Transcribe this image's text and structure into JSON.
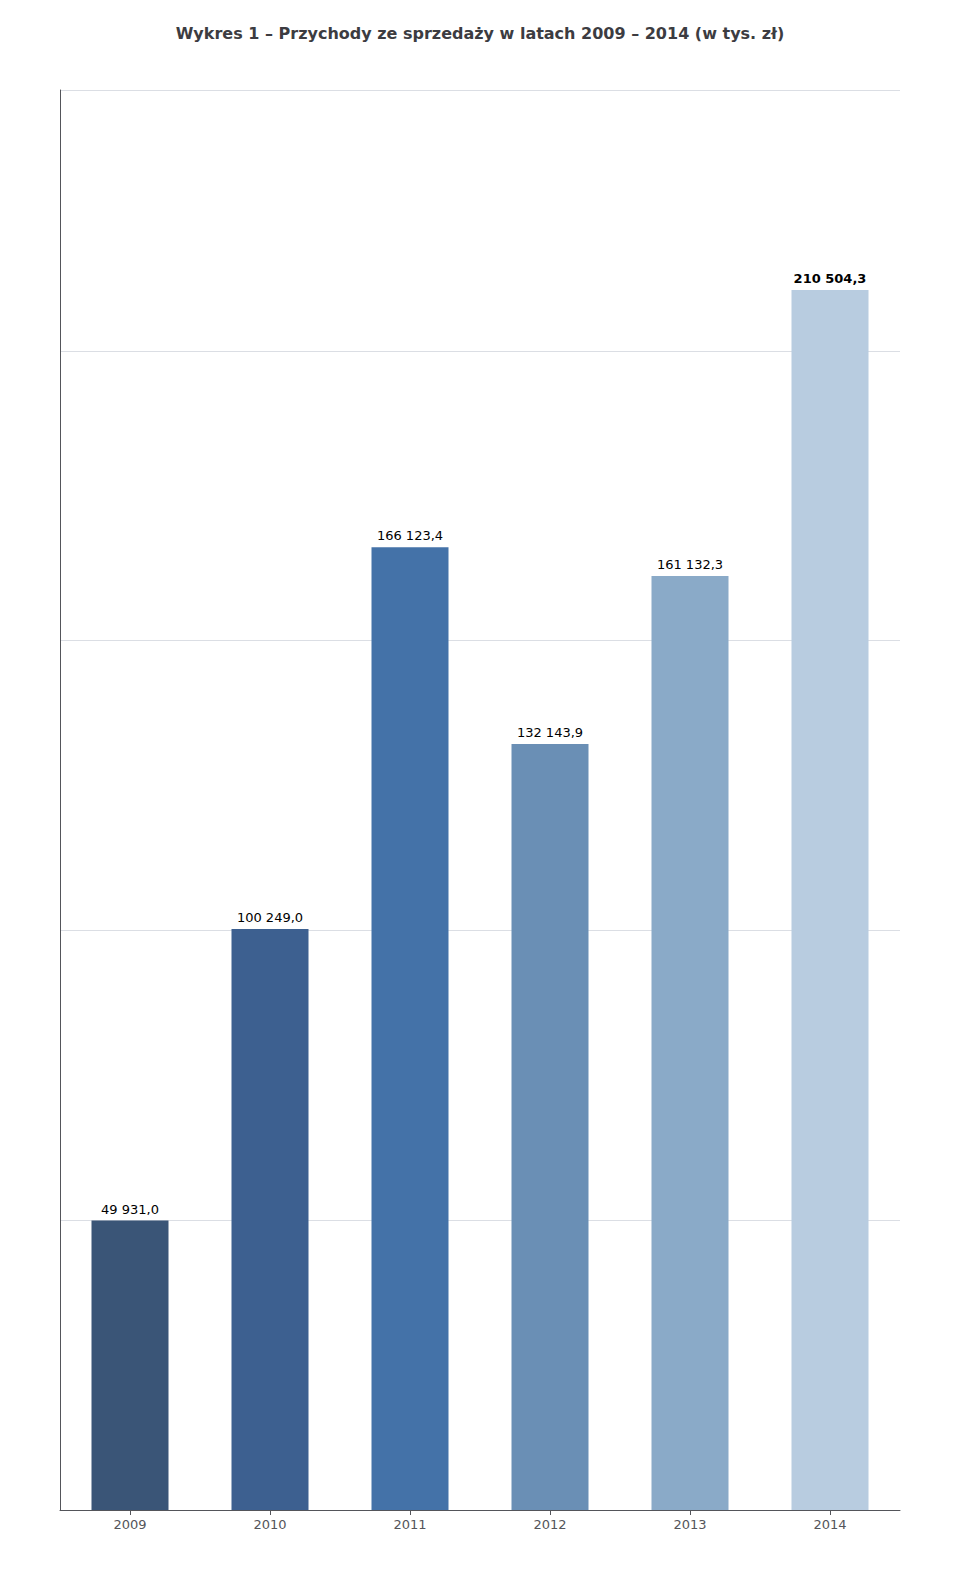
{
  "chart_data": {
    "type": "bar",
    "title": "Wykres 1 – Przychody ze sprzedaży w latach 2009 – 2014 (w tys. zł)",
    "categories": [
      "2009",
      "2010",
      "2011",
      "2012",
      "2013",
      "2014"
    ],
    "values": [
      49931.0,
      100249.0,
      166123.4,
      132143.9,
      161132.3,
      210504.3
    ],
    "value_labels": [
      "49 931,0",
      "100 249,0",
      "166 123,4",
      "132 143,9",
      "161 132,3",
      "210 504,3"
    ],
    "colors": [
      "#3a5577",
      "#3d6090",
      "#4472a8",
      "#6a8fb5",
      "#8aaac8",
      "#b8cce0"
    ],
    "ylim": [
      0,
      245000
    ],
    "yticks": [
      0,
      50000,
      100000,
      150000,
      200000
    ],
    "grid": true,
    "data_labels": true,
    "tick_labels": "x"
  }
}
